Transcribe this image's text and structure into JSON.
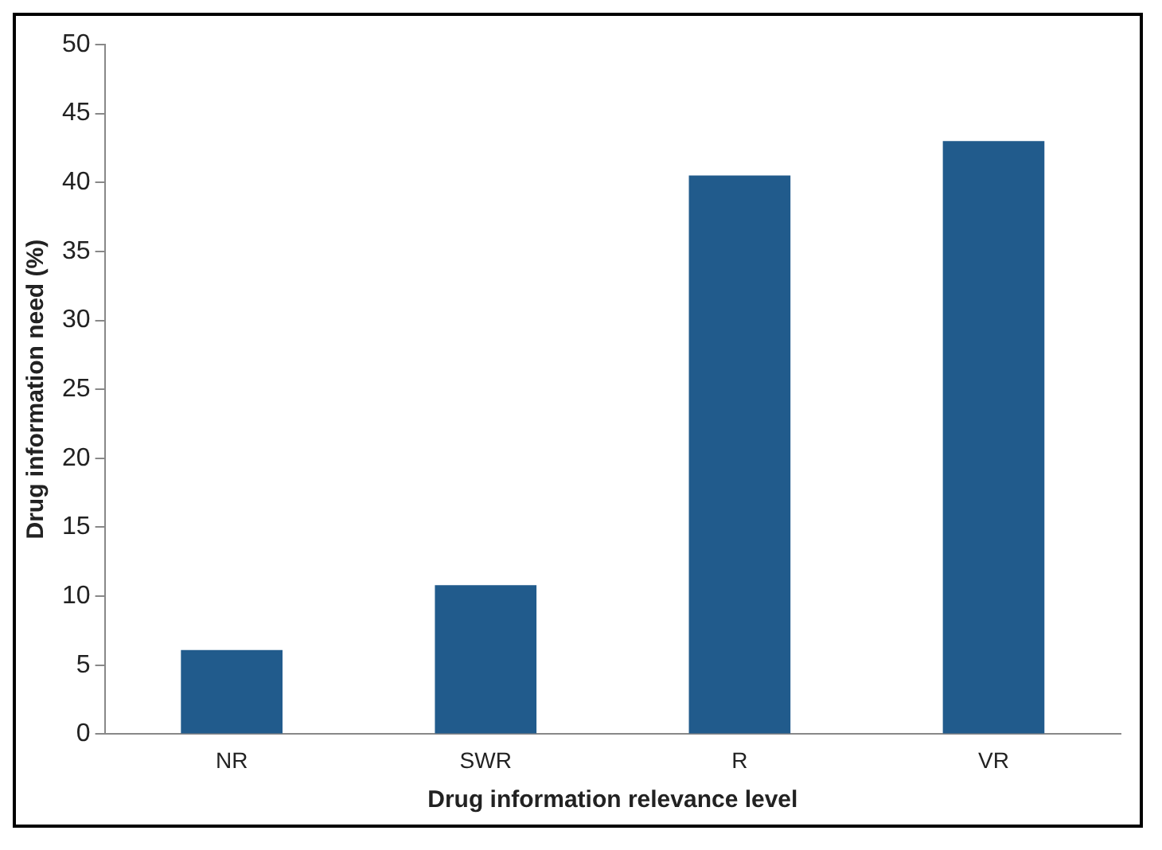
{
  "chart_data": {
    "type": "bar",
    "xlabel": "Drug information relevance level",
    "ylabel": "Drug information need (%)",
    "categories": [
      "NR",
      "SWR",
      "R",
      "VR"
    ],
    "values": [
      6.1,
      10.8,
      40.5,
      43
    ],
    "color": "#215b8c",
    "ylim": [
      0,
      50
    ],
    "yticks": [
      0,
      5,
      10,
      15,
      20,
      25,
      30,
      35,
      40,
      45,
      50
    ],
    "grid": false,
    "legend": false
  }
}
